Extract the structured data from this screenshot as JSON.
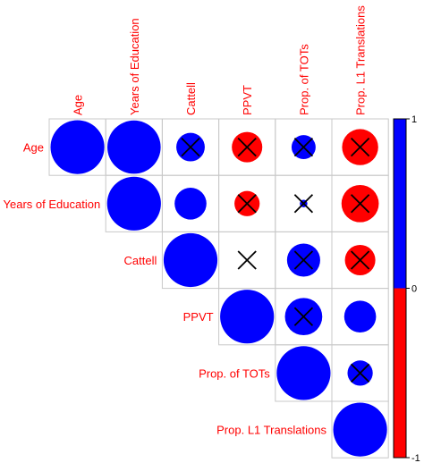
{
  "chart_data": {
    "type": "heatmap",
    "subtype": "correlation-circle-upper",
    "variables": [
      "Age",
      "Years of Education",
      "Cattell",
      "PPVT",
      "Prop. of TOTs",
      "Prop. L1 Translations"
    ],
    "correlations": [
      [
        1.0,
        0.98,
        0.28,
        -0.32,
        0.2,
        -0.45
      ],
      [
        0.98,
        1.0,
        0.35,
        -0.22,
        0.02,
        -0.48
      ],
      [
        0.28,
        0.35,
        1.0,
        0.0,
        0.38,
        -0.32
      ],
      [
        -0.32,
        -0.22,
        0.0,
        1.0,
        0.48,
        0.35
      ],
      [
        0.2,
        0.02,
        0.38,
        0.48,
        1.0,
        0.22
      ],
      [
        -0.45,
        -0.48,
        -0.32,
        0.35,
        0.22,
        1.0
      ]
    ],
    "insignificant": [
      [
        false,
        false,
        true,
        true,
        true,
        true
      ],
      [
        false,
        false,
        false,
        true,
        true,
        true
      ],
      [
        true,
        false,
        false,
        true,
        true,
        true
      ],
      [
        true,
        true,
        true,
        false,
        true,
        false
      ],
      [
        true,
        true,
        true,
        true,
        false,
        true
      ],
      [
        true,
        true,
        true,
        false,
        true,
        false
      ]
    ],
    "colorbar": {
      "ticks": [
        {
          "label": "1",
          "value": 1
        },
        {
          "label": "0",
          "value": 0
        },
        {
          "label": "-1",
          "value": -1
        }
      ],
      "positive_color": "#0000ff",
      "negative_color": "#ff0000"
    },
    "label_color": "#ff0000",
    "grid": true
  }
}
